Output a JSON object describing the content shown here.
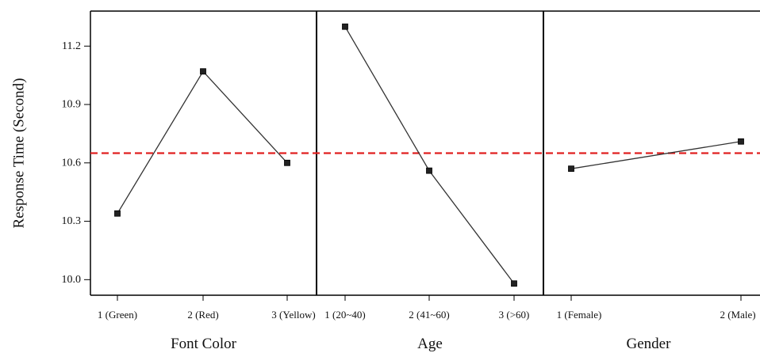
{
  "chart_data": {
    "type": "line",
    "ylabel": "Response Time (Second)",
    "yticks": [
      10.0,
      10.3,
      10.6,
      10.9,
      11.2
    ],
    "ylim": [
      9.92,
      11.38
    ],
    "reference_line": {
      "value": 10.65,
      "color": "#e02020",
      "style": "dashed"
    },
    "marker_color": "#222222",
    "line_color": "#333333",
    "grid": false,
    "panels": [
      {
        "xlabel": "Font Color",
        "categories": [
          "1 (Green)",
          "2 (Red)",
          "3 (Yellow)"
        ],
        "values": [
          10.34,
          11.07,
          10.6
        ]
      },
      {
        "xlabel": "Age",
        "categories": [
          "1 (20~40)",
          "2 (41~60)",
          "3 (>60)"
        ],
        "values": [
          11.3,
          10.56,
          9.98
        ]
      },
      {
        "xlabel": "Gender",
        "categories": [
          "1 (Female)",
          "2 (Male)"
        ],
        "values": [
          10.57,
          10.71
        ]
      }
    ]
  }
}
